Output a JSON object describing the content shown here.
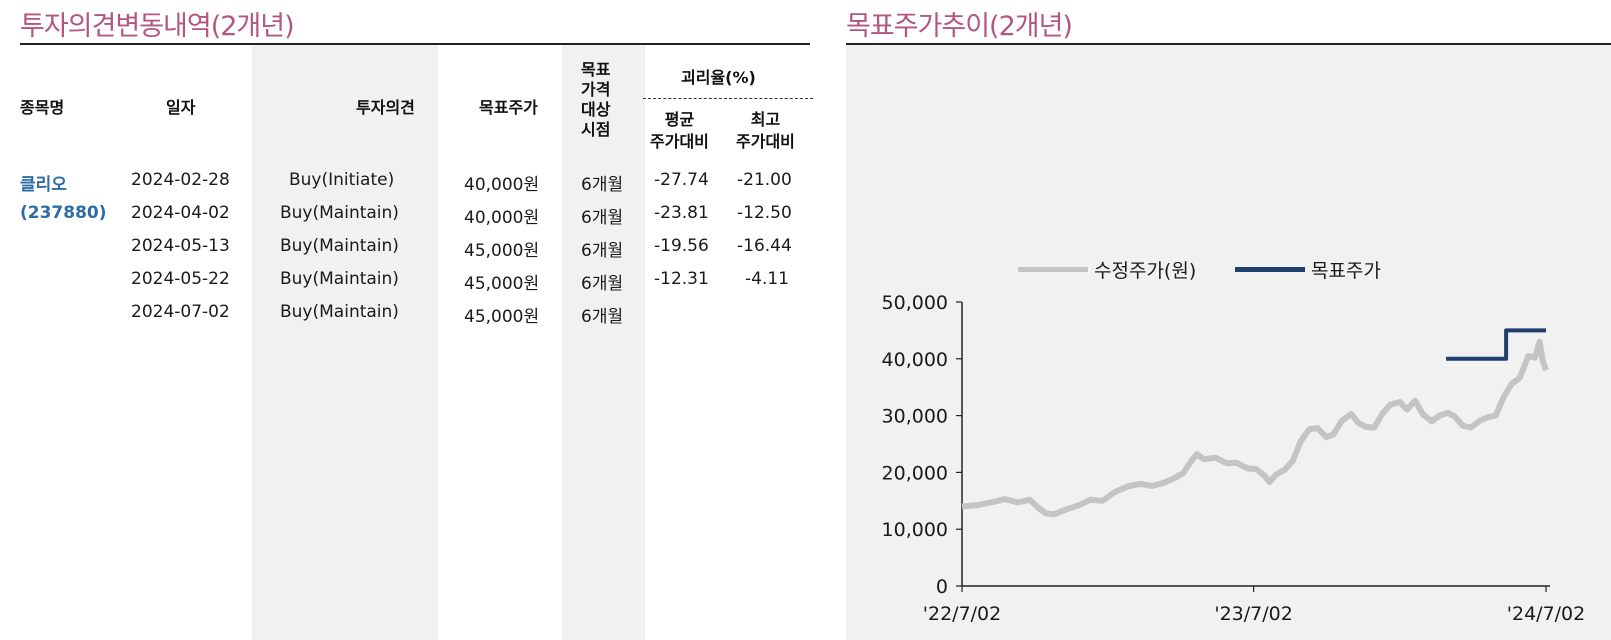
{
  "left": {
    "title": "투자의견변동내역(2개년)",
    "headers": {
      "stock": "종목명",
      "date": "일자",
      "opinion": "투자의견",
      "target": "목표주가",
      "period_lines": [
        "목표",
        "가격",
        "대상",
        "시점"
      ],
      "disparity": "괴리율(%)",
      "avg": [
        "평균",
        "주가대비"
      ],
      "max": [
        "최고",
        "주가대비"
      ]
    },
    "stock_name": "클리오",
    "stock_code": "(237880)",
    "rows": [
      {
        "date": "2024-02-28",
        "opinion": "Buy(Initiate)",
        "target": "40,000원",
        "period": "6개월",
        "avg": "-27.74",
        "max": "-21.00"
      },
      {
        "date": "2024-04-02",
        "opinion": "Buy(Maintain)",
        "target": "40,000원",
        "period": "6개월",
        "avg": "-23.81",
        "max": "-12.50"
      },
      {
        "date": "2024-05-13",
        "opinion": "Buy(Maintain)",
        "target": "45,000원",
        "period": "6개월",
        "avg": "-19.56",
        "max": "-16.44"
      },
      {
        "date": "2024-05-22",
        "opinion": "Buy(Maintain)",
        "target": "45,000원",
        "period": "6개월",
        "avg": "-12.31",
        "max": "-4.11"
      },
      {
        "date": "2024-07-02",
        "opinion": "Buy(Maintain)",
        "target": "45,000원",
        "period": "6개월",
        "avg": "",
        "max": ""
      }
    ]
  },
  "right": {
    "title": "목표주가추이(2개년)"
  },
  "chart_data": {
    "type": "line",
    "xlabel": "",
    "ylabel": "",
    "ylim": [
      0,
      50000
    ],
    "yticks": [
      0,
      10000,
      20000,
      30000,
      40000,
      50000
    ],
    "ytick_labels": [
      "0",
      "10,000",
      "20,000",
      "30,000",
      "40,000",
      "50,000"
    ],
    "xlim": [
      "2022-07-02",
      "2024-07-02"
    ],
    "xticks": [
      "2022-07-02",
      "2023-07-02",
      "2024-07-02"
    ],
    "xtick_labels": [
      "'22/7/02",
      "'23/7/02",
      "'24/7/02"
    ],
    "legend_position": "top-center",
    "series": [
      {
        "name": "수정주가(원)",
        "color": "#c4c4c4",
        "points": [
          [
            "2022-07-02",
            14000
          ],
          [
            "2022-07-20",
            14200
          ],
          [
            "2022-08-10",
            14800
          ],
          [
            "2022-08-25",
            15300
          ],
          [
            "2022-09-10",
            14700
          ],
          [
            "2022-09-25",
            15200
          ],
          [
            "2022-10-05",
            13800
          ],
          [
            "2022-10-15",
            12800
          ],
          [
            "2022-10-25",
            12600
          ],
          [
            "2022-11-10",
            13500
          ],
          [
            "2022-11-25",
            14200
          ],
          [
            "2022-12-10",
            15200
          ],
          [
            "2022-12-25",
            15000
          ],
          [
            "2023-01-10",
            16600
          ],
          [
            "2023-01-25",
            17500
          ],
          [
            "2023-02-10",
            18000
          ],
          [
            "2023-02-25",
            17600
          ],
          [
            "2023-03-10",
            18100
          ],
          [
            "2023-03-25",
            19000
          ],
          [
            "2023-04-05",
            19900
          ],
          [
            "2023-04-15",
            22000
          ],
          [
            "2023-04-22",
            23200
          ],
          [
            "2023-05-01",
            22300
          ],
          [
            "2023-05-15",
            22600
          ],
          [
            "2023-05-30",
            21600
          ],
          [
            "2023-06-10",
            21700
          ],
          [
            "2023-06-25",
            20700
          ],
          [
            "2023-07-05",
            20600
          ],
          [
            "2023-07-15",
            19500
          ],
          [
            "2023-07-22",
            18300
          ],
          [
            "2023-07-30",
            19600
          ],
          [
            "2023-08-10",
            20500
          ],
          [
            "2023-08-20",
            22000
          ],
          [
            "2023-08-30",
            25500
          ],
          [
            "2023-09-10",
            27600
          ],
          [
            "2023-09-20",
            27800
          ],
          [
            "2023-10-01",
            26200
          ],
          [
            "2023-10-10",
            26700
          ],
          [
            "2023-10-20",
            29000
          ],
          [
            "2023-11-01",
            30300
          ],
          [
            "2023-11-10",
            28700
          ],
          [
            "2023-11-20",
            28000
          ],
          [
            "2023-11-30",
            27900
          ],
          [
            "2023-12-10",
            30300
          ],
          [
            "2023-12-20",
            31900
          ],
          [
            "2024-01-01",
            32400
          ],
          [
            "2024-01-10",
            31100
          ],
          [
            "2024-01-20",
            32600
          ],
          [
            "2024-01-30",
            30200
          ],
          [
            "2024-02-10",
            29000
          ],
          [
            "2024-02-20",
            30000
          ],
          [
            "2024-03-01",
            30500
          ],
          [
            "2024-03-10",
            29800
          ],
          [
            "2024-03-20",
            28200
          ],
          [
            "2024-03-30",
            27900
          ],
          [
            "2024-04-10",
            29100
          ],
          [
            "2024-04-20",
            29700
          ],
          [
            "2024-04-30",
            30000
          ],
          [
            "2024-05-10",
            33300
          ],
          [
            "2024-05-20",
            35600
          ],
          [
            "2024-05-30",
            36600
          ],
          [
            "2024-06-10",
            40500
          ],
          [
            "2024-06-18",
            40200
          ],
          [
            "2024-06-24",
            43000
          ],
          [
            "2024-06-28",
            39600
          ],
          [
            "2024-07-02",
            38000
          ]
        ]
      },
      {
        "name": "목표주가",
        "color": "#1f3f6e",
        "points": [
          [
            "2024-02-28",
            40000
          ],
          [
            "2024-05-13",
            40000
          ],
          [
            "2024-05-13",
            45000
          ],
          [
            "2024-07-02",
            45000
          ]
        ]
      }
    ]
  }
}
